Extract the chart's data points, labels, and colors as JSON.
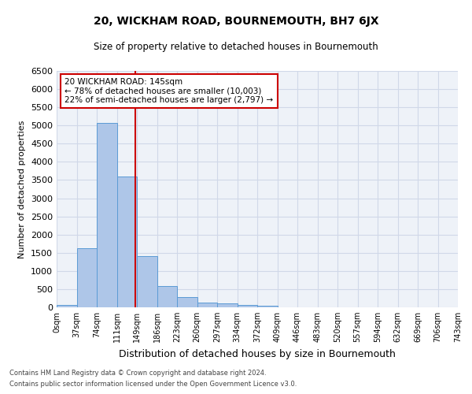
{
  "title": "20, WICKHAM ROAD, BOURNEMOUTH, BH7 6JX",
  "subtitle": "Size of property relative to detached houses in Bournemouth",
  "xlabel": "Distribution of detached houses by size in Bournemouth",
  "ylabel": "Number of detached properties",
  "footnote1": "Contains HM Land Registry data © Crown copyright and database right 2024.",
  "footnote2": "Contains public sector information licensed under the Open Government Licence v3.0.",
  "bar_values": [
    75,
    1625,
    5075,
    3600,
    1400,
    580,
    290,
    140,
    100,
    70,
    50,
    0,
    0,
    0,
    0,
    0,
    0,
    0,
    0,
    0
  ],
  "bin_labels": [
    "0sqm",
    "37sqm",
    "74sqm",
    "111sqm",
    "149sqm",
    "186sqm",
    "223sqm",
    "260sqm",
    "297sqm",
    "334sqm",
    "372sqm",
    "409sqm",
    "446sqm",
    "483sqm",
    "520sqm",
    "557sqm",
    "594sqm",
    "632sqm",
    "669sqm",
    "706sqm",
    "743sqm"
  ],
  "bar_color": "#aec6e8",
  "bar_edge_color": "#5b9bd5",
  "grid_color": "#d0d8e8",
  "bg_color": "#eef2f8",
  "vline_x": 3.92,
  "vline_color": "#cc0000",
  "annotation_text": "20 WICKHAM ROAD: 145sqm\n← 78% of detached houses are smaller (10,003)\n22% of semi-detached houses are larger (2,797) →",
  "annotation_box_color": "#cc0000",
  "ylim": [
    0,
    6500
  ],
  "yticks": [
    0,
    500,
    1000,
    1500,
    2000,
    2500,
    3000,
    3500,
    4000,
    4500,
    5000,
    5500,
    6000,
    6500
  ],
  "figsize": [
    6.0,
    5.0
  ],
  "dpi": 100
}
